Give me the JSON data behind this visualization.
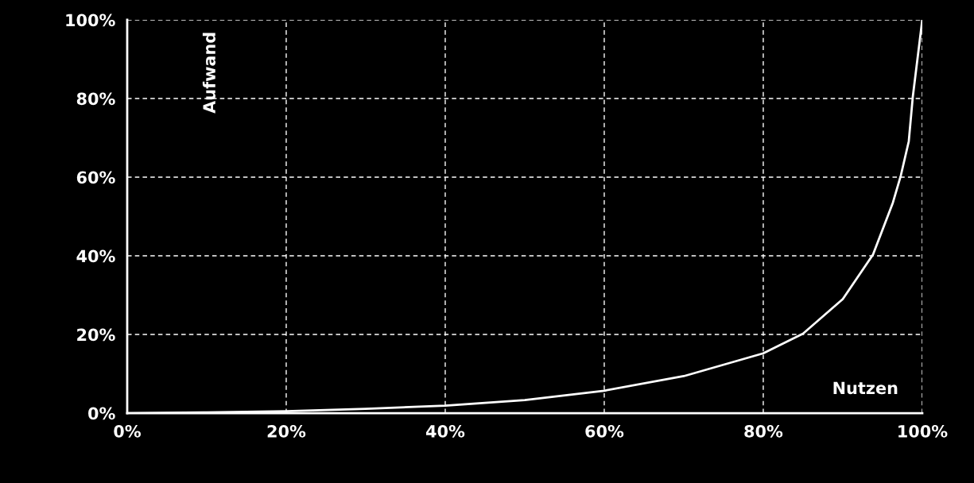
{
  "chart_data": {
    "type": "line",
    "xlabel": "Nutzen",
    "ylabel": "Aufwand",
    "x": [
      0,
      10,
      20,
      30,
      40,
      50,
      60,
      70,
      80,
      85,
      90,
      93.8,
      96.3,
      97.3,
      98.3,
      98.8,
      100
    ],
    "series": [
      {
        "color": "#ffffff",
        "values": [
          0,
          0.2,
          0.5,
          1.1,
          1.9,
          3.3,
          5.7,
          9.4,
          15.2,
          20.2,
          29,
          40.3,
          53.5,
          60.4,
          69.1,
          80.3,
          100
        ]
      }
    ],
    "xlim": [
      0,
      100
    ],
    "ylim": [
      0,
      100
    ],
    "xticks": [
      {
        "value": 0,
        "label": "0%"
      },
      {
        "value": 20,
        "label": "20%"
      },
      {
        "value": 40,
        "label": "40%"
      },
      {
        "value": 60,
        "label": "60%"
      },
      {
        "value": 80,
        "label": "80%"
      },
      {
        "value": 100,
        "label": "100%"
      }
    ],
    "yticks": [
      {
        "value": 0,
        "label": "0%"
      },
      {
        "value": 20,
        "label": "20%"
      },
      {
        "value": 40,
        "label": "40%"
      },
      {
        "value": 60,
        "label": "60%"
      },
      {
        "value": 80,
        "label": "80%"
      },
      {
        "value": 100,
        "label": "100%"
      }
    ],
    "grid": true,
    "line_style": "solid",
    "legend": false
  }
}
